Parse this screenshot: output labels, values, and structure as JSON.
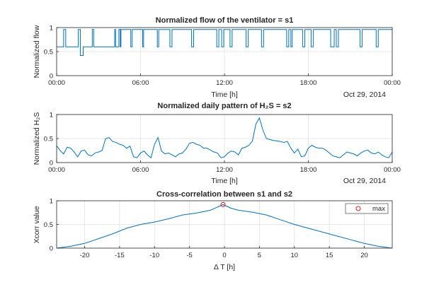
{
  "chart_data": [
    {
      "type": "line",
      "title": "Normalized flow of the ventilator = s1",
      "xlabel": "Time [h]",
      "ylabel": "Normalized flow",
      "date_label": "Oct 29, 2014",
      "x_ticks": [
        "00:00",
        "06:00",
        "12:00",
        "18:00",
        "00:00"
      ],
      "x_tick_hours": [
        0,
        6,
        12,
        18,
        24
      ],
      "y_ticks": [
        "0",
        "0.5",
        "1"
      ],
      "y_tick_values": [
        0,
        0.5,
        1
      ],
      "xlim_hours": [
        0,
        24
      ],
      "ylim": [
        0,
        1
      ],
      "grid": true,
      "series": [
        {
          "color": "#0072bd",
          "x_hours": [
            0,
            0.5,
            0.5,
            0.65,
            0.65,
            1.55,
            1.55,
            1.7,
            1.7,
            1.9,
            1.9,
            2.55,
            2.55,
            2.65,
            2.65,
            4.15,
            4.15,
            4.22,
            4.22,
            4.45,
            4.45,
            4.55,
            4.55,
            4.6,
            4.6,
            5.3,
            5.3,
            5.4,
            5.4,
            6.15,
            6.15,
            6.22,
            6.22,
            7.2,
            7.2,
            7.3,
            7.3,
            8.1,
            8.1,
            8.25,
            8.25,
            9.65,
            9.65,
            9.8,
            9.8,
            11.45,
            11.45,
            11.6,
            11.6,
            11.8,
            11.8,
            11.95,
            11.95,
            12.4,
            12.4,
            12.55,
            12.55,
            13.55,
            13.55,
            13.7,
            13.7,
            14.65,
            14.65,
            14.8,
            14.8,
            16.45,
            16.45,
            16.6,
            16.6,
            16.75,
            16.75,
            16.85,
            16.85,
            17.6,
            17.6,
            17.75,
            17.75,
            18.2,
            18.2,
            18.35,
            18.35,
            19.6,
            19.6,
            19.85,
            19.85,
            20.0,
            20.0,
            20.15,
            20.15,
            21.7,
            21.7,
            21.85,
            21.85,
            22.85,
            22.85,
            23.0,
            23.0,
            24
          ],
          "y": [
            0.6,
            0.6,
            0.96,
            0.96,
            0.6,
            0.6,
            0.96,
            0.96,
            0.42,
            0.42,
            0.6,
            0.6,
            0.96,
            0.96,
            0.6,
            0.6,
            0.96,
            0.96,
            0.6,
            0.6,
            0.96,
            0.96,
            0.6,
            0.6,
            0.96,
            0.96,
            0.6,
            0.6,
            0.96,
            0.96,
            0.6,
            0.6,
            0.96,
            0.96,
            0.6,
            0.6,
            0.96,
            0.96,
            0.6,
            0.6,
            0.96,
            0.96,
            0.6,
            0.6,
            0.96,
            0.96,
            0.6,
            0.6,
            0.96,
            0.96,
            0.6,
            0.6,
            0.96,
            0.96,
            0.6,
            0.6,
            0.96,
            0.96,
            0.6,
            0.6,
            0.96,
            0.96,
            0.6,
            0.6,
            0.96,
            0.96,
            0.6,
            0.6,
            0.96,
            0.96,
            0.6,
            0.6,
            0.96,
            0.96,
            0.6,
            0.6,
            0.96,
            0.96,
            0.6,
            0.6,
            0.96,
            0.96,
            0.6,
            0.6,
            0.96,
            0.96,
            0.6,
            0.6,
            0.96,
            0.96,
            0.6,
            0.6,
            0.96,
            0.96,
            0.6,
            0.6,
            0.96,
            0.96
          ]
        }
      ]
    },
    {
      "type": "line",
      "title": "Normalized daily pattern of H₂S = s2",
      "xlabel": "Time [h]",
      "ylabel": "Normalized H₂S",
      "date_label": "Oct 29, 2014",
      "x_ticks": [
        "00:00",
        "06:00",
        "12:00",
        "18:00",
        "00:00"
      ],
      "x_tick_hours": [
        0,
        6,
        12,
        18,
        24
      ],
      "y_ticks": [
        "0",
        "0.5",
        "1"
      ],
      "y_tick_values": [
        0,
        0.5,
        1
      ],
      "xlim_hours": [
        0,
        24
      ],
      "ylim": [
        0,
        1
      ],
      "grid": true,
      "series": [
        {
          "color": "#0072bd",
          "x_hours": [
            0,
            0.25,
            0.5,
            0.75,
            1.0,
            1.25,
            1.5,
            1.75,
            2.0,
            2.25,
            2.5,
            2.75,
            3.0,
            3.25,
            3.5,
            3.75,
            4.0,
            4.25,
            4.5,
            4.75,
            5.0,
            5.25,
            5.5,
            5.75,
            6.0,
            6.25,
            6.5,
            6.75,
            7.0,
            7.25,
            7.5,
            7.75,
            8.0,
            8.25,
            8.5,
            8.75,
            9.0,
            9.25,
            9.5,
            9.75,
            10.0,
            10.25,
            10.5,
            10.75,
            11.0,
            11.25,
            11.5,
            11.75,
            12.0,
            12.25,
            12.5,
            12.75,
            13.0,
            13.25,
            13.5,
            13.75,
            14.0,
            14.25,
            14.5,
            14.75,
            15.0,
            15.25,
            15.5,
            15.75,
            16.0,
            16.25,
            16.5,
            16.75,
            17.0,
            17.25,
            17.5,
            17.75,
            18.0,
            18.25,
            18.5,
            18.75,
            19.0,
            19.25,
            19.5,
            19.75,
            20.0,
            20.25,
            20.5,
            20.75,
            21.0,
            21.25,
            21.5,
            21.75,
            22.0,
            22.25,
            22.5,
            22.75,
            23.0,
            23.25,
            23.5,
            23.75,
            24.0
          ],
          "y": [
            0.35,
            0.25,
            0.18,
            0.32,
            0.3,
            0.22,
            0.12,
            0.24,
            0.26,
            0.16,
            0.14,
            0.2,
            0.22,
            0.25,
            0.5,
            0.52,
            0.44,
            0.42,
            0.38,
            0.36,
            0.3,
            0.34,
            0.12,
            0.1,
            0.2,
            0.24,
            0.16,
            0.1,
            0.38,
            0.52,
            0.24,
            0.18,
            0.2,
            0.16,
            0.12,
            0.18,
            0.2,
            0.28,
            0.4,
            0.42,
            0.38,
            0.36,
            0.3,
            0.3,
            0.26,
            0.22,
            0.2,
            0.1,
            0.12,
            0.2,
            0.24,
            0.22,
            0.16,
            0.3,
            0.32,
            0.36,
            0.45,
            0.8,
            0.93,
            0.68,
            0.5,
            0.48,
            0.46,
            0.45,
            0.44,
            0.42,
            0.44,
            0.3,
            0.2,
            0.28,
            0.12,
            0.14,
            0.3,
            0.36,
            0.32,
            0.3,
            0.3,
            0.26,
            0.2,
            0.14,
            0.12,
            0.1,
            0.16,
            0.22,
            0.2,
            0.18,
            0.14,
            0.2,
            0.24,
            0.26,
            0.2,
            0.18,
            0.22,
            0.16,
            0.12,
            0.1,
            0.22
          ]
        }
      ]
    },
    {
      "type": "line",
      "title": "Cross-correlation between s1 and s2",
      "xlabel": "Δ T [h]",
      "ylabel": "Xcorr value",
      "x_ticks": [
        "-20",
        "-15",
        "-10",
        "-5",
        "0",
        "5",
        "10",
        "15",
        "20"
      ],
      "x_tick_values": [
        -20,
        -15,
        -10,
        -5,
        0,
        5,
        10,
        15,
        20
      ],
      "y_ticks": [
        "0",
        "0.5",
        "1"
      ],
      "y_tick_values": [
        0,
        0.5,
        1
      ],
      "xlim": [
        -24,
        24
      ],
      "ylim": [
        0,
        1
      ],
      "grid": true,
      "legend": {
        "position": "top-right",
        "entries": [
          "max"
        ]
      },
      "max_point": {
        "x": -0.2,
        "y": 0.92
      },
      "series": [
        {
          "color": "#0072bd",
          "x": [
            -24,
            -22,
            -20,
            -18,
            -16,
            -14,
            -12,
            -10,
            -8,
            -6,
            -4,
            -2,
            -0.2,
            1,
            2,
            4,
            6,
            8,
            10,
            12,
            14,
            16,
            18,
            20,
            22,
            24
          ],
          "y": [
            0.0,
            0.04,
            0.1,
            0.2,
            0.3,
            0.42,
            0.5,
            0.55,
            0.62,
            0.7,
            0.74,
            0.8,
            0.92,
            0.84,
            0.8,
            0.76,
            0.7,
            0.6,
            0.5,
            0.42,
            0.34,
            0.26,
            0.18,
            0.1,
            0.04,
            0.0
          ]
        }
      ]
    }
  ]
}
